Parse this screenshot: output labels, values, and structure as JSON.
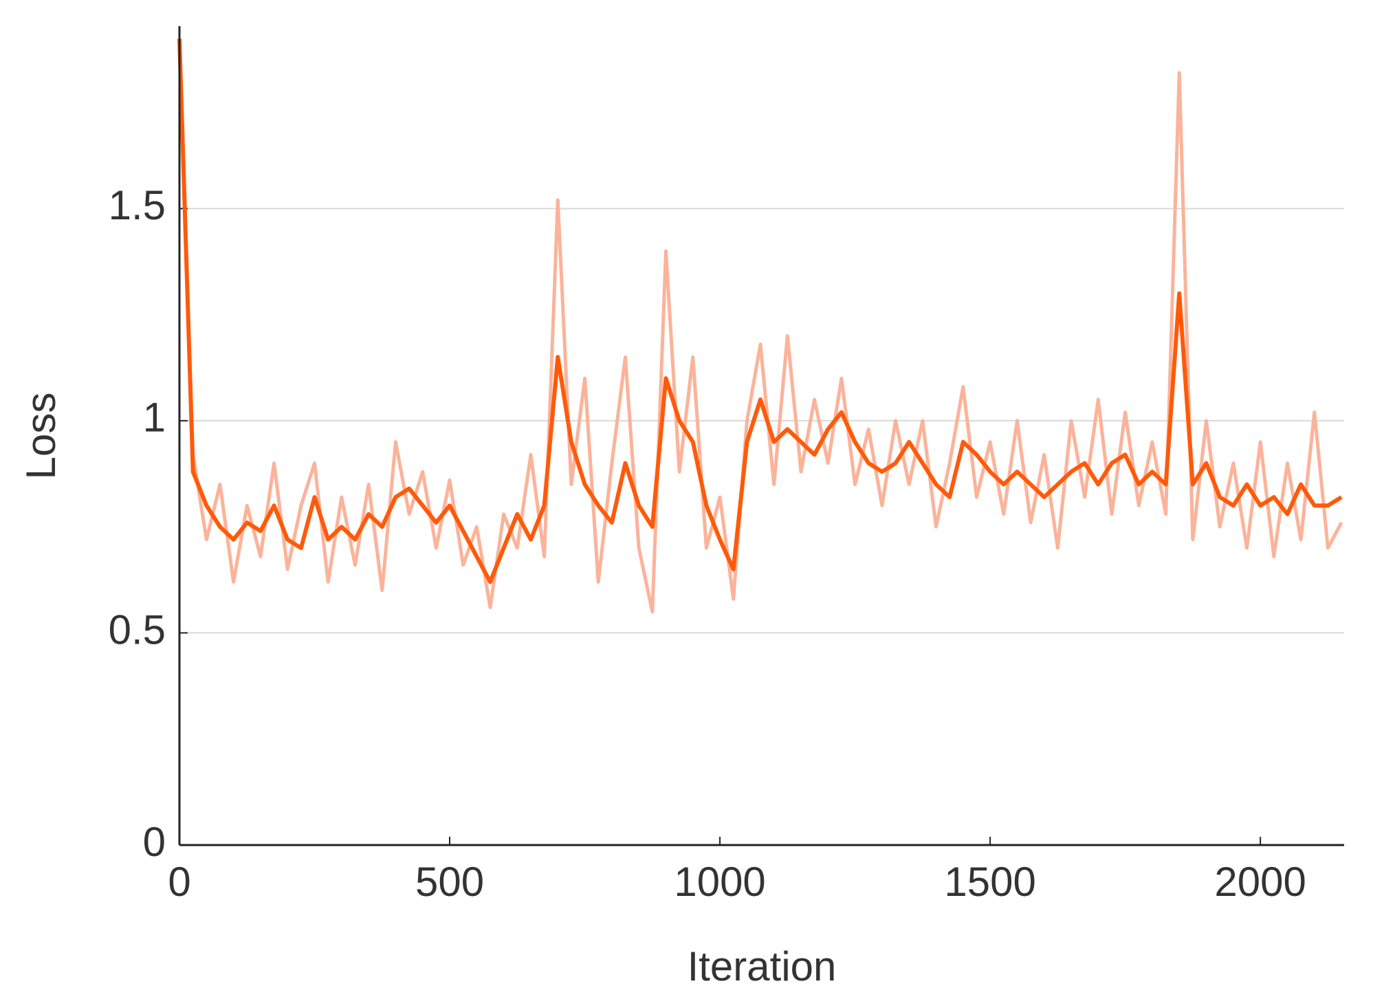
{
  "chart_data": {
    "type": "line",
    "x_label": "Iteration",
    "y_label": "Loss",
    "x": [
      0,
      25,
      50,
      75,
      100,
      125,
      150,
      175,
      200,
      225,
      250,
      275,
      300,
      325,
      350,
      375,
      400,
      425,
      450,
      475,
      500,
      525,
      550,
      575,
      600,
      625,
      650,
      675,
      700,
      725,
      750,
      775,
      800,
      825,
      850,
      875,
      900,
      925,
      950,
      975,
      1000,
      1025,
      1050,
      1075,
      1100,
      1125,
      1150,
      1175,
      1200,
      1225,
      1250,
      1275,
      1300,
      1325,
      1350,
      1375,
      1400,
      1425,
      1450,
      1475,
      1500,
      1525,
      1550,
      1575,
      1600,
      1625,
      1650,
      1675,
      1700,
      1725,
      1750,
      1775,
      1800,
      1825,
      1850,
      1875,
      1900,
      1925,
      1950,
      1975,
      2000,
      2025,
      2050,
      2075,
      2100,
      2125,
      2150
    ],
    "series": [
      {
        "color": "#fbb39a",
        "values": [
          1.88,
          0.92,
          0.72,
          0.85,
          0.62,
          0.8,
          0.68,
          0.9,
          0.65,
          0.8,
          0.9,
          0.62,
          0.82,
          0.66,
          0.85,
          0.6,
          0.95,
          0.78,
          0.88,
          0.7,
          0.86,
          0.66,
          0.75,
          0.56,
          0.78,
          0.7,
          0.92,
          0.68,
          1.52,
          0.85,
          1.1,
          0.62,
          0.9,
          1.15,
          0.7,
          0.55,
          1.4,
          0.88,
          1.15,
          0.7,
          0.82,
          0.58,
          1.0,
          1.18,
          0.85,
          1.2,
          0.88,
          1.05,
          0.9,
          1.1,
          0.85,
          0.98,
          0.8,
          1.0,
          0.85,
          1.0,
          0.75,
          0.9,
          1.08,
          0.82,
          0.95,
          0.78,
          1.0,
          0.76,
          0.92,
          0.7,
          1.0,
          0.82,
          1.05,
          0.78,
          1.02,
          0.8,
          0.95,
          0.78,
          1.82,
          0.72,
          1.0,
          0.75,
          0.9,
          0.7,
          0.95,
          0.68,
          0.9,
          0.72,
          1.02,
          0.7,
          0.76
        ]
      },
      {
        "color": "#ff5a0a",
        "values": [
          1.9,
          0.88,
          0.8,
          0.75,
          0.72,
          0.76,
          0.74,
          0.8,
          0.72,
          0.7,
          0.82,
          0.72,
          0.75,
          0.72,
          0.78,
          0.75,
          0.82,
          0.84,
          0.8,
          0.76,
          0.8,
          0.74,
          0.68,
          0.62,
          0.7,
          0.78,
          0.72,
          0.8,
          1.15,
          0.95,
          0.85,
          0.8,
          0.76,
          0.9,
          0.8,
          0.75,
          1.1,
          1.0,
          0.95,
          0.8,
          0.72,
          0.65,
          0.95,
          1.05,
          0.95,
          0.98,
          0.95,
          0.92,
          0.98,
          1.02,
          0.95,
          0.9,
          0.88,
          0.9,
          0.95,
          0.9,
          0.85,
          0.82,
          0.95,
          0.92,
          0.88,
          0.85,
          0.88,
          0.85,
          0.82,
          0.85,
          0.88,
          0.9,
          0.85,
          0.9,
          0.92,
          0.85,
          0.88,
          0.85,
          1.3,
          0.85,
          0.9,
          0.82,
          0.8,
          0.85,
          0.8,
          0.82,
          0.78,
          0.85,
          0.8,
          0.8,
          0.82
        ]
      }
    ],
    "xlim": [
      0,
      2155
    ],
    "ylim": [
      0,
      1.93
    ],
    "xticks": [
      0,
      500,
      1000,
      1500,
      2000
    ],
    "yticks": [
      0,
      0.5,
      1,
      1.5
    ],
    "grid": true
  }
}
